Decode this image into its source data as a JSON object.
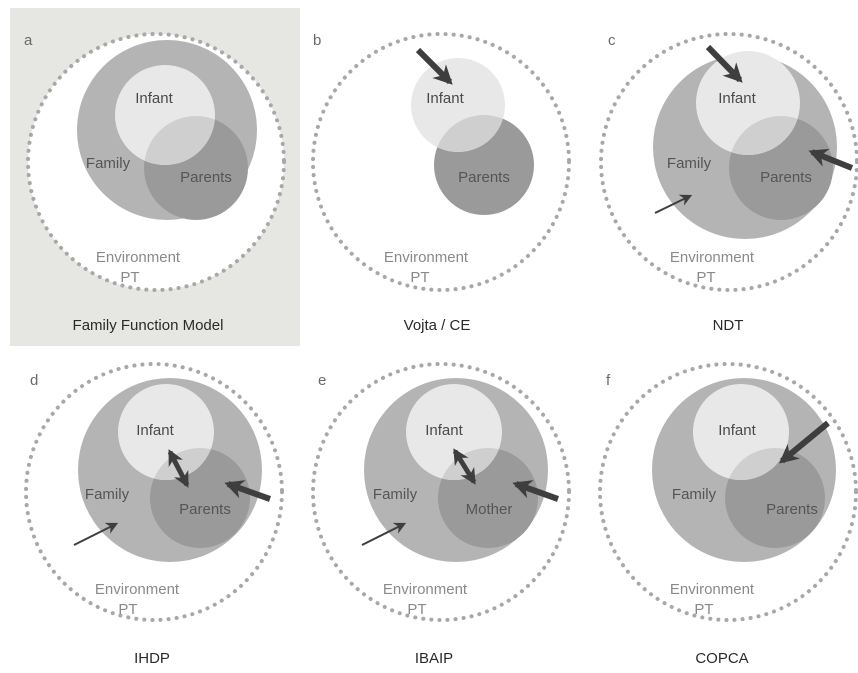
{
  "colors": {
    "panel_highlight": "#e6e6e2",
    "environment_dots": "#a8a8a8",
    "family": "#b4b4b4",
    "infant": "#e8e8e8",
    "parents": "#9a9a9a",
    "overlap": "#cfcfcf",
    "arrow_strong": "#3e3e3e",
    "arrow_thin": "#3e3e3e"
  },
  "panels": [
    {
      "letter": "a",
      "caption": "Family Function Model",
      "infant": "Infant",
      "family": "Family",
      "parents": "Parents",
      "environment": "Environment",
      "pt": "PT",
      "arrows": []
    },
    {
      "letter": "b",
      "caption": "Vojta / CE",
      "infant": "Infant",
      "family": "",
      "parents": "Parents",
      "environment": "Environment",
      "pt": "PT",
      "arrows": [
        "thick arrow to infant"
      ]
    },
    {
      "letter": "c",
      "caption": "NDT",
      "infant": "Infant",
      "family": "Family",
      "parents": "Parents",
      "environment": "Environment",
      "pt": "PT",
      "arrows": [
        "thick arrow to infant",
        "thick arrow to parents",
        "thin arrow to family"
      ]
    },
    {
      "letter": "d",
      "caption": "IHDP",
      "infant": "Infant",
      "family": "Family",
      "parents": "Parents",
      "environment": "Environment",
      "pt": "PT",
      "arrows": [
        "double arrow infant-parents",
        "thick arrow to parents",
        "thin arrow to family"
      ]
    },
    {
      "letter": "e",
      "caption": "IBAIP",
      "infant": "Infant",
      "family": "Family",
      "parents": "Mother",
      "environment": "Environment",
      "pt": "PT",
      "arrows": [
        "double arrow infant-mother",
        "thick arrow to mother",
        "thin arrow to family"
      ]
    },
    {
      "letter": "f",
      "caption": "COPCA",
      "infant": "Infant",
      "family": "Family",
      "parents": "Parents",
      "environment": "Environment",
      "pt": "PT",
      "arrows": [
        "thick arrow to infant-parents overlap"
      ]
    }
  ]
}
